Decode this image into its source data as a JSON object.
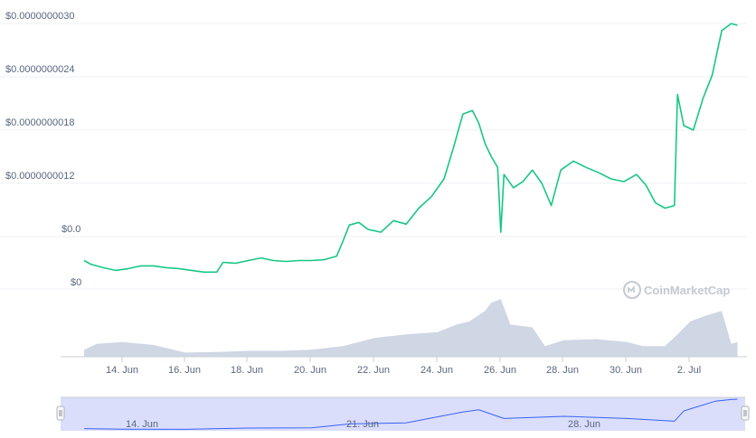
{
  "chart_data": {
    "type": "line",
    "x_unit": "day of June",
    "y_ticks": [
      "$0.0000000030",
      "$0.0000000024",
      "$0.0000000018",
      "$0.0000000012",
      "$0.0",
      "$0"
    ],
    "x_ticks": [
      "14. Jun",
      "16. Jun",
      "18. Jun",
      "20. Jun",
      "22. Jun",
      "24. Jun",
      "26. Jun",
      "28. Jun",
      "30. Jun",
      "2. Jul"
    ],
    "navigator_ticks": [
      "14. Jun",
      "21. Jun",
      "28. Jun"
    ],
    "watermark": "CoinMarketCap",
    "colors": {
      "price_line": "#16c784",
      "volume": "#cfd6e4",
      "navigator_fill": "#d7dcfb",
      "navigator_line": "#3861fb",
      "grid": "#eff2f5"
    },
    "price_series": [
      [
        12.8,
        -0.27
      ],
      [
        13.0,
        -0.31
      ],
      [
        13.4,
        -0.35
      ],
      [
        13.8,
        -0.38
      ],
      [
        14.2,
        -0.36
      ],
      [
        14.6,
        -0.33
      ],
      [
        15.0,
        -0.33
      ],
      [
        15.4,
        -0.35
      ],
      [
        15.8,
        -0.36
      ],
      [
        16.2,
        -0.38
      ],
      [
        16.6,
        -0.4
      ],
      [
        17.0,
        -0.4
      ],
      [
        17.2,
        -0.29
      ],
      [
        17.6,
        -0.3
      ],
      [
        18.0,
        -0.27
      ],
      [
        18.4,
        -0.24
      ],
      [
        18.8,
        -0.27
      ],
      [
        19.2,
        -0.28
      ],
      [
        19.6,
        -0.27
      ],
      [
        20.0,
        -0.27
      ],
      [
        20.4,
        -0.26
      ],
      [
        20.8,
        -0.22
      ],
      [
        21.0,
        -0.05
      ],
      [
        21.2,
        0.13
      ],
      [
        21.5,
        0.16
      ],
      [
        21.8,
        0.08
      ],
      [
        22.2,
        0.05
      ],
      [
        22.6,
        0.18
      ],
      [
        23.0,
        0.14
      ],
      [
        23.4,
        0.32
      ],
      [
        23.8,
        0.45
      ],
      [
        24.2,
        0.65
      ],
      [
        24.5,
        1.0
      ],
      [
        24.8,
        1.38
      ],
      [
        25.1,
        1.42
      ],
      [
        25.3,
        1.28
      ],
      [
        25.5,
        1.05
      ],
      [
        25.7,
        0.9
      ],
      [
        25.9,
        0.78
      ],
      [
        26.0,
        0.05
      ],
      [
        26.1,
        0.7
      ],
      [
        26.4,
        0.55
      ],
      [
        26.7,
        0.62
      ],
      [
        27.0,
        0.75
      ],
      [
        27.3,
        0.6
      ],
      [
        27.6,
        0.35
      ],
      [
        27.9,
        0.75
      ],
      [
        28.3,
        0.85
      ],
      [
        28.7,
        0.78
      ],
      [
        29.1,
        0.72
      ],
      [
        29.5,
        0.65
      ],
      [
        29.9,
        0.62
      ],
      [
        30.3,
        0.7
      ],
      [
        30.6,
        0.58
      ],
      [
        30.9,
        0.38
      ],
      [
        31.2,
        0.32
      ],
      [
        31.5,
        0.35
      ],
      [
        31.6,
        1.6
      ],
      [
        31.8,
        1.25
      ],
      [
        32.1,
        1.2
      ],
      [
        32.4,
        1.55
      ],
      [
        32.7,
        1.82
      ],
      [
        33.0,
        2.32
      ],
      [
        33.3,
        2.4
      ],
      [
        33.5,
        2.38
      ]
    ],
    "volume_series": [
      [
        12.8,
        0.12
      ],
      [
        13.2,
        0.22
      ],
      [
        14.0,
        0.25
      ],
      [
        15.0,
        0.2
      ],
      [
        16.0,
        0.07
      ],
      [
        17.0,
        0.08
      ],
      [
        18.0,
        0.1
      ],
      [
        19.0,
        0.1
      ],
      [
        20.0,
        0.12
      ],
      [
        21.0,
        0.18
      ],
      [
        22.0,
        0.32
      ],
      [
        23.0,
        0.38
      ],
      [
        24.0,
        0.42
      ],
      [
        24.6,
        0.55
      ],
      [
        25.0,
        0.6
      ],
      [
        25.5,
        0.78
      ],
      [
        25.7,
        0.92
      ],
      [
        26.0,
        0.98
      ],
      [
        26.3,
        0.55
      ],
      [
        27.0,
        0.5
      ],
      [
        27.4,
        0.18
      ],
      [
        28.0,
        0.28
      ],
      [
        29.0,
        0.3
      ],
      [
        30.0,
        0.25
      ],
      [
        30.5,
        0.18
      ],
      [
        31.2,
        0.18
      ],
      [
        31.6,
        0.38
      ],
      [
        32.0,
        0.6
      ],
      [
        32.5,
        0.7
      ],
      [
        33.0,
        0.78
      ],
      [
        33.3,
        0.22
      ],
      [
        33.5,
        0.25
      ]
    ],
    "navigator_series": [
      [
        12.8,
        -0.33
      ],
      [
        14.0,
        -0.38
      ],
      [
        16.0,
        -0.4
      ],
      [
        18.0,
        -0.28
      ],
      [
        20.0,
        -0.27
      ],
      [
        21.2,
        0.1
      ],
      [
        23.0,
        0.2
      ],
      [
        24.8,
        1.2
      ],
      [
        25.3,
        1.4
      ],
      [
        25.9,
        0.8
      ],
      [
        26.1,
        0.6
      ],
      [
        28.0,
        0.8
      ],
      [
        30.0,
        0.6
      ],
      [
        31.5,
        0.35
      ],
      [
        31.8,
        1.3
      ],
      [
        32.8,
        2.2
      ],
      [
        33.3,
        2.35
      ],
      [
        33.5,
        2.38
      ]
    ]
  }
}
